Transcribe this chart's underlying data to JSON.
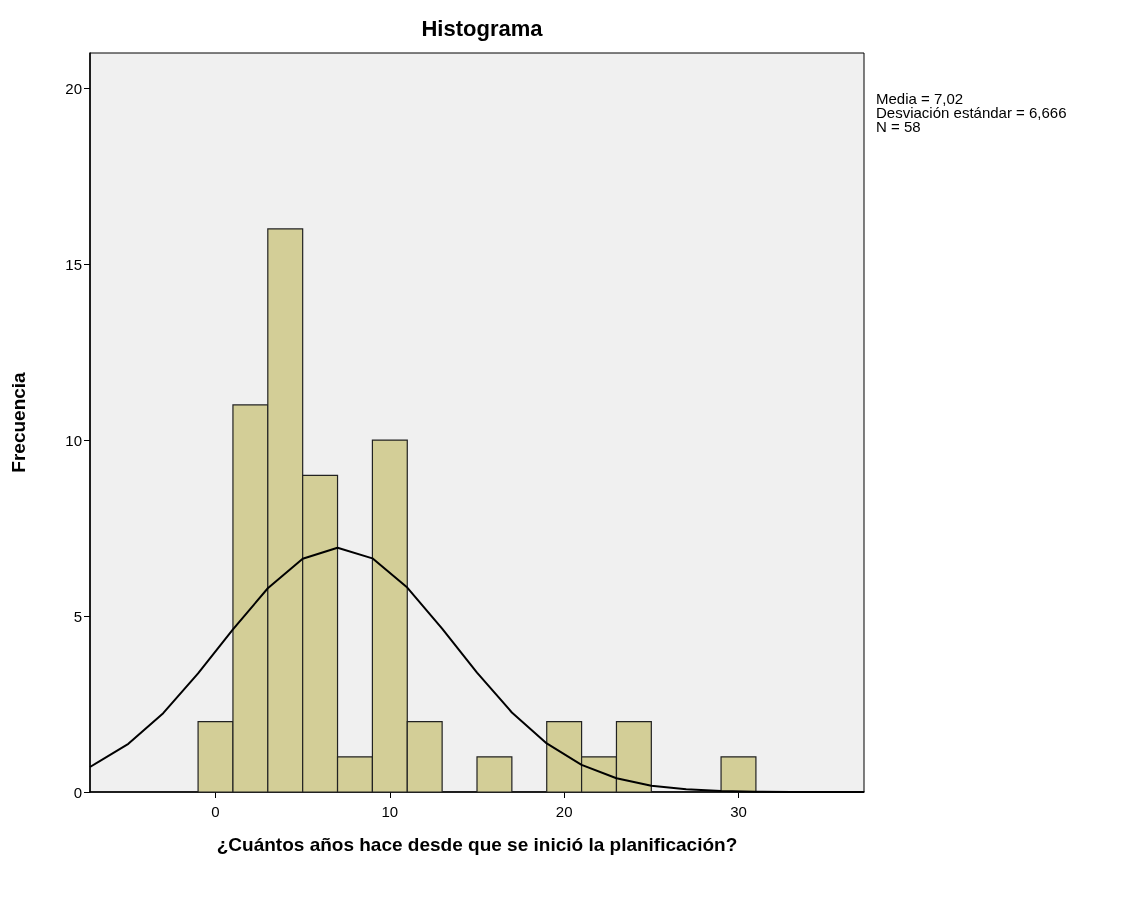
{
  "chart_data": {
    "type": "histogram",
    "title": "Histograma",
    "xlabel": "¿Cuántos años hace desde que se inició la planificación?",
    "ylabel": "Frecuencia",
    "annotations": [
      "Media = 7,02",
      "Desviación estándar = 6,666",
      "N = 58"
    ],
    "bins": [
      -1,
      1,
      3,
      5,
      7,
      9,
      11,
      13,
      15,
      17,
      19,
      21,
      23,
      25,
      27,
      29,
      31
    ],
    "values": [
      2,
      11,
      16,
      9,
      1,
      10,
      2,
      0,
      1,
      0,
      2,
      1,
      2,
      0,
      0,
      1
    ],
    "color": "#d3ce97",
    "series": [
      {
        "type": "line",
        "color": "#000000",
        "x": [
          -7.2,
          -5,
          -3,
          -1,
          1,
          3,
          5,
          7,
          9,
          11,
          13,
          15,
          17,
          19,
          21,
          23,
          25,
          27,
          29,
          31,
          33,
          37.2
        ],
        "values": [
          0.71,
          1.37,
          2.24,
          3.37,
          4.62,
          5.79,
          6.63,
          6.94,
          6.64,
          5.81,
          4.64,
          3.39,
          2.26,
          1.38,
          0.77,
          0.39,
          0.18,
          0.08,
          0.03,
          0.01,
          0,
          0
        ]
      }
    ],
    "marker": "none",
    "line_style": "solid",
    "grid": false,
    "xlim": [
      -7.2,
      37.2
    ],
    "xticks": [
      0,
      10,
      20,
      30
    ],
    "ylim": [
      0,
      21
    ],
    "yticks": [
      0,
      5,
      10,
      15,
      20
    ]
  }
}
